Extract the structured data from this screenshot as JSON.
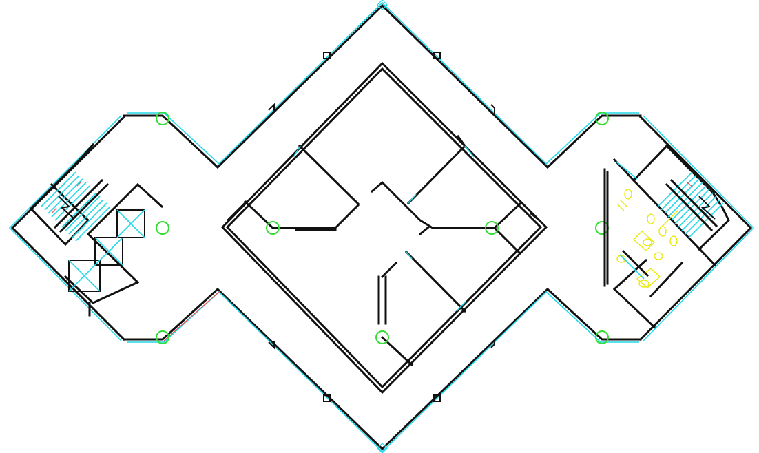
{
  "drawing": {
    "background": "#ffffff",
    "colors": {
      "wall": "#111111",
      "glazing": "#20d8e8",
      "column_marker": "#33dd33",
      "fixture": "#e8e800",
      "arrow": "#e05050"
    },
    "icons": [
      "stair-symbol",
      "elevator-cab-symbol",
      "toilet-fixture-symbol"
    ]
  }
}
